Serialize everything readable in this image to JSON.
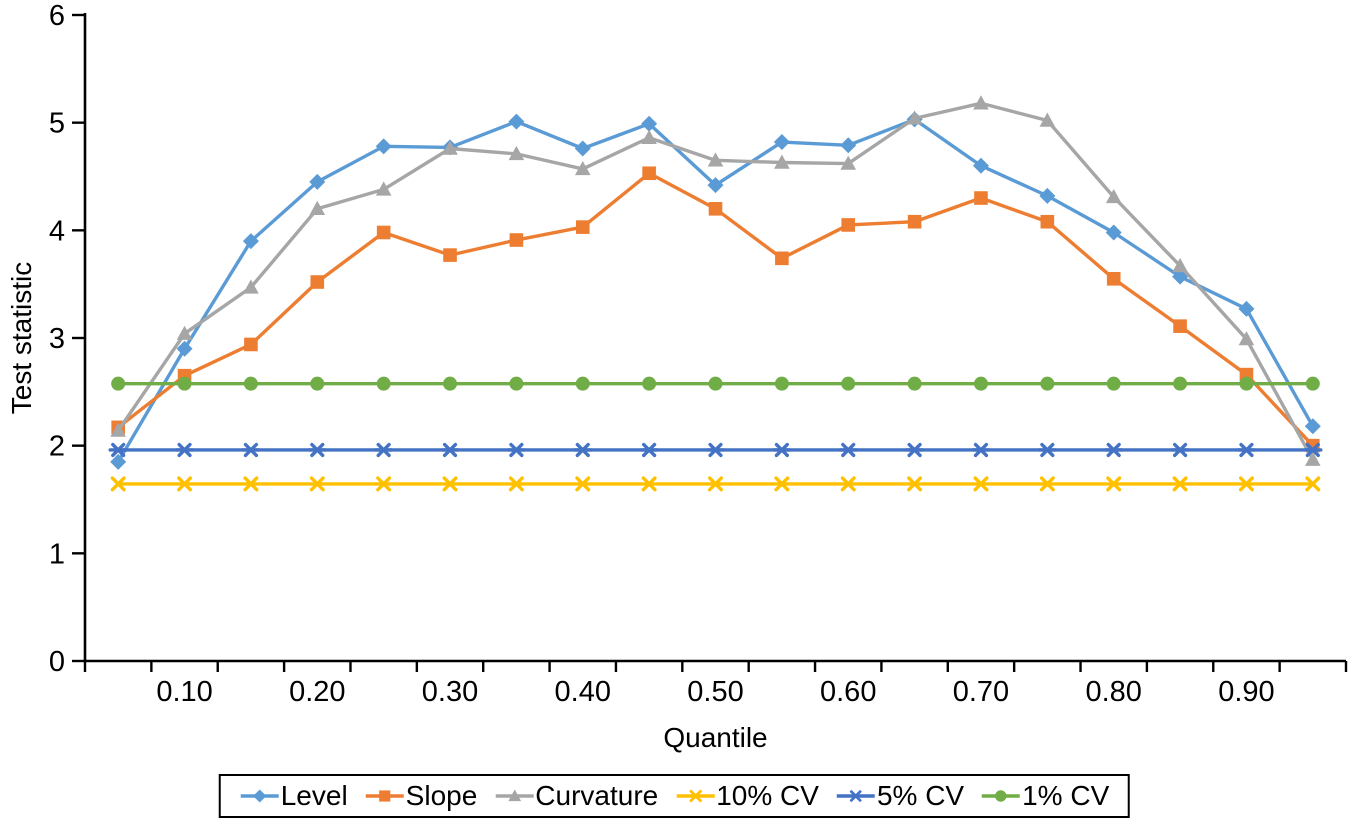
{
  "chart_data": {
    "type": "line",
    "title": "",
    "xlabel": "Quantile",
    "ylabel": "Test statistic",
    "ylim": [
      0,
      6
    ],
    "yticks": [
      "0",
      "1",
      "2",
      "3",
      "4",
      "5",
      "6"
    ],
    "categories": [
      "0.05",
      "0.10",
      "0.15",
      "0.20",
      "0.25",
      "0.30",
      "0.35",
      "0.40",
      "0.45",
      "0.50",
      "0.55",
      "0.60",
      "0.65",
      "0.70",
      "0.75",
      "0.80",
      "0.85",
      "0.90",
      "0.95"
    ],
    "x_axis_labels": [
      "",
      "0.10",
      "",
      "0.20",
      "",
      "0.30",
      "",
      "0.40",
      "",
      "0.50",
      "",
      "0.60",
      "",
      "0.70",
      "",
      "0.80",
      "",
      "0.90",
      ""
    ],
    "grid": false,
    "legend_position": "bottom",
    "series": [
      {
        "name": "Level",
        "color": "#5B9BD5",
        "marker": "diamond",
        "values": [
          1.85,
          2.9,
          3.9,
          4.45,
          4.78,
          4.77,
          5.01,
          4.76,
          4.99,
          4.42,
          4.82,
          4.79,
          5.03,
          4.6,
          4.32,
          3.98,
          3.57,
          3.27,
          2.18
        ]
      },
      {
        "name": "Slope",
        "color": "#ED7D31",
        "marker": "square",
        "values": [
          2.17,
          2.65,
          2.94,
          3.52,
          3.98,
          3.77,
          3.91,
          4.03,
          4.53,
          4.2,
          3.74,
          4.05,
          4.08,
          4.3,
          4.08,
          3.55,
          3.11,
          2.66,
          2.0
        ]
      },
      {
        "name": "Curvature",
        "color": "#A6A6A6",
        "marker": "triangle",
        "values": [
          2.14,
          3.04,
          3.47,
          4.2,
          4.38,
          4.76,
          4.71,
          4.57,
          4.86,
          4.65,
          4.63,
          4.62,
          5.04,
          5.18,
          5.02,
          4.31,
          3.67,
          2.99,
          1.87
        ]
      },
      {
        "name": "10% CV",
        "color": "#FFC000",
        "marker": "x",
        "values": [
          1.645,
          1.645,
          1.645,
          1.645,
          1.645,
          1.645,
          1.645,
          1.645,
          1.645,
          1.645,
          1.645,
          1.645,
          1.645,
          1.645,
          1.645,
          1.645,
          1.645,
          1.645,
          1.645
        ]
      },
      {
        "name": "5% CV",
        "color": "#4472C4",
        "marker": "asterisk",
        "values": [
          1.96,
          1.96,
          1.96,
          1.96,
          1.96,
          1.96,
          1.96,
          1.96,
          1.96,
          1.96,
          1.96,
          1.96,
          1.96,
          1.96,
          1.96,
          1.96,
          1.96,
          1.96,
          1.96
        ]
      },
      {
        "name": "1% CV",
        "color": "#70AD47",
        "marker": "circle",
        "values": [
          2.576,
          2.576,
          2.576,
          2.576,
          2.576,
          2.576,
          2.576,
          2.576,
          2.576,
          2.576,
          2.576,
          2.576,
          2.576,
          2.576,
          2.576,
          2.576,
          2.576,
          2.576,
          2.576
        ]
      }
    ]
  }
}
